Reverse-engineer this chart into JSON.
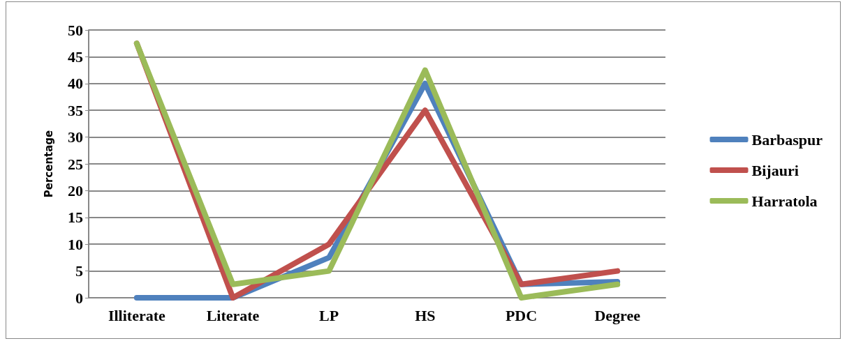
{
  "chart_data": {
    "type": "line",
    "ylabel": "Percentage",
    "categories": [
      "Illiterate",
      "Literate",
      "LP",
      "HS",
      "PDC",
      "Degree"
    ],
    "series": [
      {
        "name": "Barbaspur",
        "color": "#4f81bd",
        "values": [
          0,
          0,
          7.5,
          40,
          2.5,
          3
        ]
      },
      {
        "name": "Bijauri",
        "color": "#c0504d",
        "values": [
          47.5,
          0,
          10,
          35,
          2.5,
          5
        ]
      },
      {
        "name": "Harratola",
        "color": "#9bbb59",
        "values": [
          47.5,
          2.5,
          5,
          42.5,
          0,
          2.5
        ]
      }
    ],
    "ylim": [
      0,
      50
    ],
    "yticks": [
      0,
      5,
      10,
      15,
      20,
      25,
      30,
      35,
      40,
      45,
      50
    ],
    "grid": "y",
    "legend": "right",
    "marker": "none",
    "line_style": "solid"
  }
}
